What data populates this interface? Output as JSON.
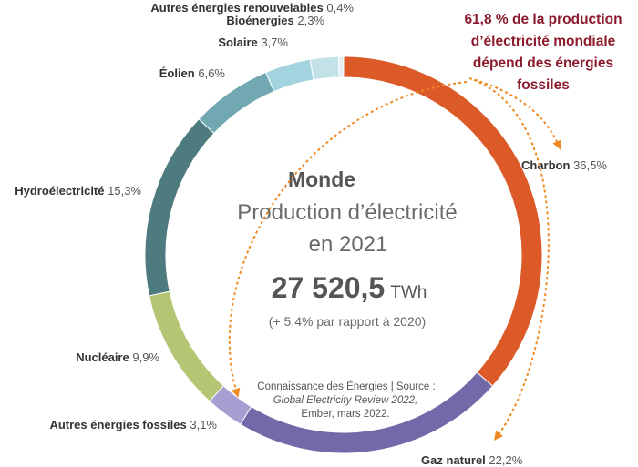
{
  "chart_data": {
    "type": "pie",
    "style": "donut",
    "categories": [
      "Charbon",
      "Gaz naturel",
      "Autres énergies fossiles",
      "Nucléaire",
      "Hydroélectricité",
      "Éolien",
      "Solaire",
      "Bioénergies",
      "Autres énergies renouvelables"
    ],
    "values": [
      36.5,
      22.2,
      3.1,
      9.9,
      15.3,
      6.6,
      3.7,
      2.3,
      0.4
    ],
    "value_labels": [
      "36,5%",
      "22,2%",
      "3,1%",
      "9,9%",
      "15,3%",
      "6,6%",
      "3,7%",
      "2,3%",
      "0,4%"
    ],
    "colors": [
      "#db5a28",
      "#7368a8",
      "#a79fd2",
      "#b4c673",
      "#4e7b80",
      "#72a8b2",
      "#a3d3df",
      "#c2e2e8",
      "#e4eff1"
    ],
    "center": {
      "title": "Monde",
      "subtitle_line1": "Production d’électricité",
      "subtitle_line2": "en 2021",
      "total_value": "27 520,5",
      "total_unit": "TWh",
      "comparison": "(+ 5,4% par rapport à 2020)"
    },
    "source_lines": [
      "Connaissance des Énergies | Source :",
      "Global Electricity Review 2022,",
      "Ember, mars 2022."
    ],
    "annotation_lines": [
      "61,8 % de la production",
      "d’électricité mondiale",
      "dépend des énergies",
      "fossiles"
    ],
    "accent_colors": {
      "annotation": "#8b1a2c",
      "arrows": "#f08a24"
    }
  }
}
